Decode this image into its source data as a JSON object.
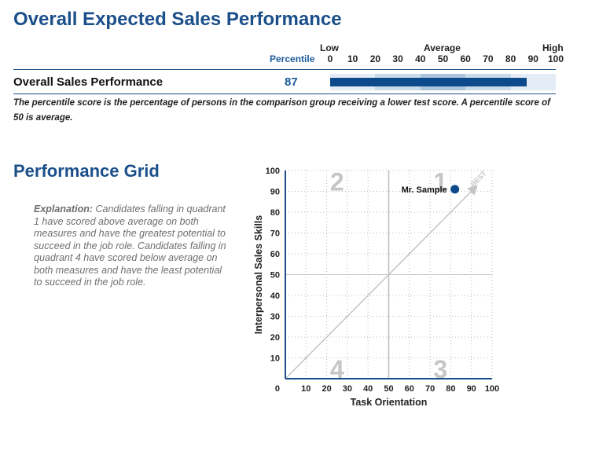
{
  "page": {
    "title": "Overall Expected Sales Performance",
    "grid_title": "Performance Grid"
  },
  "percentile_scale": {
    "low_label": "Low",
    "average_label": "Average",
    "high_label": "High",
    "percentile_label": "Percentile",
    "ticks": [
      "0",
      "10",
      "20",
      "30",
      "40",
      "50",
      "60",
      "70",
      "80",
      "90",
      "100"
    ]
  },
  "score_row": {
    "label": "Overall Sales Performance",
    "score": "87",
    "value": 87,
    "bar_color": "#0d4a8c",
    "band_colors": [
      "#e4edf5",
      "#c9dbe9",
      "#aac5dc",
      "#c9dbe9",
      "#e4edf5"
    ]
  },
  "footnote": "The percentile score is the percentage of persons in the comparison group receiving a lower test score. A percentile score of 50 is average.",
  "explanation": {
    "lead": "Explanation:",
    "body": " Candidates falling in quadrant 1 have scored above average on both measures and have the greatest potential to succeed in the job role. Candidates falling in quadrant 4 have scored below average on both measures and have the least potential to succeed in the job role."
  },
  "chart_data": {
    "type": "scatter",
    "xlabel": "Task Orientation",
    "ylabel": "Interpersonal Sales Skills",
    "xlim": [
      0,
      100
    ],
    "ylim": [
      0,
      100
    ],
    "x_ticks": [
      "10",
      "20",
      "30",
      "40",
      "50",
      "60",
      "70",
      "80",
      "90",
      "100"
    ],
    "y_ticks": [
      "0",
      "10",
      "20",
      "30",
      "40",
      "50",
      "60",
      "70",
      "80",
      "90",
      "100"
    ],
    "grid": true,
    "quadrants": [
      "1",
      "2",
      "3",
      "4"
    ],
    "diagonal_label": "BEST",
    "points": [
      {
        "label": "Mr. Sample",
        "x": 82,
        "y": 91
      }
    ],
    "point_color": "#0d4a8c",
    "axis_color": "#1b4f8a"
  }
}
